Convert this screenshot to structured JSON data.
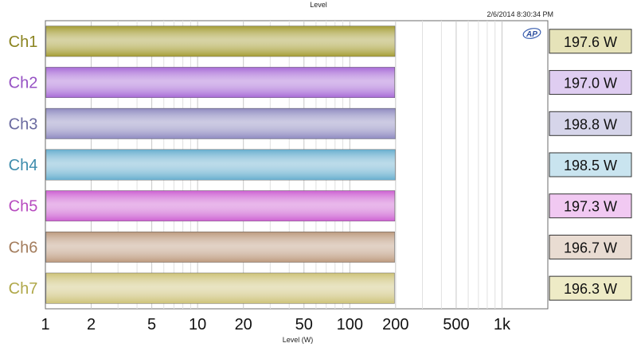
{
  "header": {
    "title": "Level",
    "timestamp": "2/6/2014 8:30:34 PM",
    "logo_text": "AP"
  },
  "chart_data": {
    "type": "bar",
    "orientation": "horizontal",
    "title": "Level",
    "xlabel": "Level (W)",
    "ylabel": "",
    "xscale": "log",
    "xlim": [
      1,
      2000
    ],
    "x_ticks": [
      1,
      2,
      5,
      10,
      20,
      50,
      100,
      200,
      500,
      1000
    ],
    "x_tick_labels": [
      "1",
      "2",
      "5",
      "10",
      "20",
      "50",
      "100",
      "200",
      "500",
      "1k"
    ],
    "grid": true,
    "categories": [
      "Ch1",
      "Ch2",
      "Ch3",
      "Ch4",
      "Ch5",
      "Ch6",
      "Ch7"
    ],
    "values": [
      197.6,
      197.0,
      198.8,
      198.5,
      197.3,
      196.7,
      196.3
    ],
    "value_labels": [
      "197.6 W",
      "197.0 W",
      "198.8 W",
      "198.5 W",
      "197.3 W",
      "196.7 W",
      "196.3 W"
    ],
    "colors": [
      "#a59d34",
      "#a76ad6",
      "#8e8ac0",
      "#68afcf",
      "#cd61d2",
      "#bd9a7e",
      "#cdc278"
    ],
    "label_colors": [
      "#8b8420",
      "#9652c4",
      "#6a6aa0",
      "#3e8cac",
      "#b74bbf",
      "#a37c5c",
      "#b0a84a"
    ],
    "readout_bg": [
      "#e6e3b9",
      "#dfcdf1",
      "#d6d5ea",
      "#c9e4ef",
      "#f1c9f2",
      "#e9dcd2",
      "#eeebc6"
    ]
  }
}
